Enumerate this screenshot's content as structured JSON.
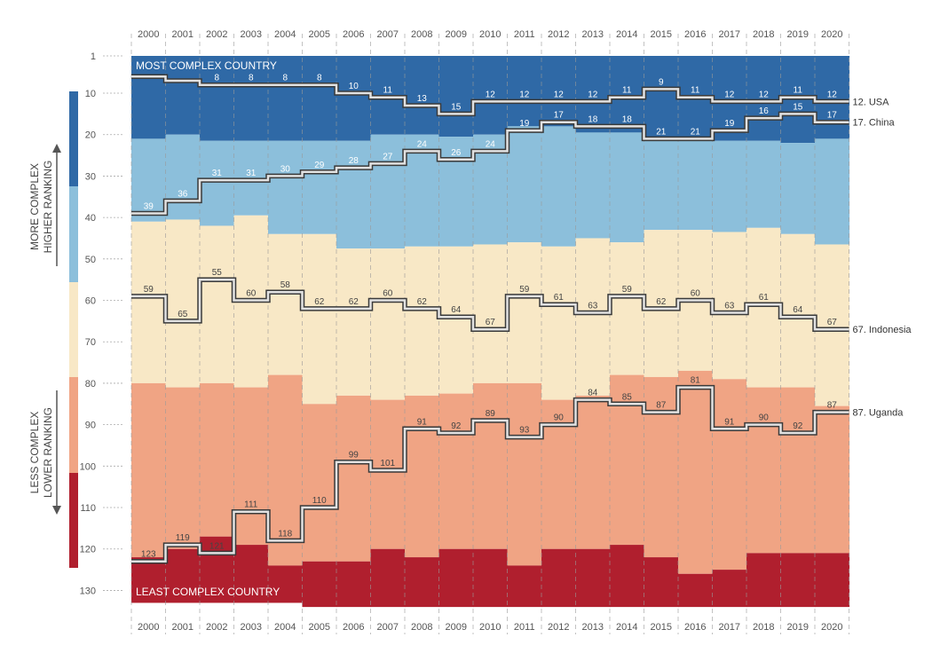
{
  "chart_data": {
    "type": "area",
    "title": "",
    "years": [
      "2000",
      "2001",
      "2002",
      "2003",
      "2004",
      "2005",
      "2006",
      "2007",
      "2008",
      "2009",
      "2010",
      "2011",
      "2012",
      "2013",
      "2014",
      "2015",
      "2016",
      "2017",
      "2018",
      "2019",
      "2020"
    ],
    "y_ticks": [
      1,
      10,
      20,
      30,
      40,
      50,
      60,
      70,
      80,
      90,
      100,
      110,
      120,
      130
    ],
    "y_range": [
      1,
      133
    ],
    "y_inverted": true,
    "banners": {
      "top": "MOST COMPLEX COUNTRY",
      "bottom": "LEAST COMPLEX COUNTRY"
    },
    "side_labels": {
      "top_line1": "MORE COMPLEX",
      "top_line2": "HIGHER RANKING",
      "bottom_line1": "LESS COMPLEX",
      "bottom_line2": "LOWER RANKING"
    },
    "band_colors": [
      "#2f69a6",
      "#8cbfdb",
      "#f8e8c6",
      "#f0a484",
      "#b01f2e"
    ],
    "band_bounds": {
      "b1": [
        21,
        20,
        21.5,
        21.5,
        21.5,
        21.5,
        21.5,
        20,
        20,
        20.5,
        20,
        18,
        18,
        19.5,
        19.5,
        21.5,
        21.5,
        21.5,
        21.5,
        22,
        21
      ],
      "b2": [
        41,
        40.5,
        42,
        39.5,
        44,
        44,
        47.5,
        47.5,
        47,
        47,
        46.5,
        46,
        47,
        45,
        46,
        43,
        43,
        43.5,
        42.5,
        44,
        46.5
      ],
      "b3": [
        80,
        81,
        80,
        81,
        78,
        85,
        83,
        84,
        83,
        82.5,
        80,
        80,
        84,
        83,
        78,
        78.5,
        77,
        79,
        81,
        81,
        85.5
      ],
      "b4": [
        122,
        120,
        117,
        119,
        124,
        123,
        123,
        120,
        122,
        120,
        120,
        124,
        120,
        120,
        119,
        122,
        126,
        125,
        121,
        121,
        121
      ],
      "b5": [
        133,
        133,
        133,
        133,
        133,
        134,
        134,
        134,
        134,
        134,
        134,
        134,
        134,
        134,
        134,
        134,
        134,
        134,
        134,
        134,
        134
      ]
    },
    "series": [
      {
        "name": "USA",
        "end_label": "12. USA",
        "label_color": "#ffffff",
        "values": [
          6,
          7,
          8,
          8,
          8,
          8,
          10,
          11,
          13,
          15,
          12,
          12,
          12,
          12,
          11,
          9,
          11,
          12,
          12,
          11,
          12
        ]
      },
      {
        "name": "China",
        "end_label": "17. China",
        "label_color": "#ffffff",
        "values": [
          39,
          36,
          31,
          31,
          30,
          29,
          28,
          27,
          24,
          26,
          24,
          19,
          17,
          18,
          18,
          21,
          21,
          19,
          16,
          15,
          17
        ]
      },
      {
        "name": "Indonesia",
        "end_label": "67. Indonesia",
        "label_color": "#444444",
        "values": [
          59,
          65,
          55,
          60,
          58,
          62,
          62,
          60,
          62,
          64,
          67,
          59,
          61,
          63,
          59,
          62,
          60,
          63,
          61,
          64,
          67
        ]
      },
      {
        "name": "Uganda",
        "end_label": "87. Uganda",
        "label_color": "#444444",
        "values": [
          123,
          119,
          121,
          111,
          118,
          110,
          99,
          101,
          91,
          92,
          89,
          93,
          90,
          84,
          85,
          87,
          81,
          91,
          90,
          92,
          87
        ]
      }
    ],
    "data_labels": {
      "USA": [
        "",
        "",
        "8",
        "8",
        "8",
        "8",
        "10",
        "11",
        "13",
        "15",
        "12",
        "12",
        "12",
        "12",
        "11",
        "9",
        "11",
        "12",
        "12",
        "11",
        "12"
      ],
      "China": [
        "39",
        "36",
        "31",
        "31",
        "30",
        "29",
        "28",
        "27",
        "24",
        "26",
        "24",
        "19",
        "17",
        "18",
        "18",
        "21",
        "21",
        "19",
        "16",
        "15",
        "17"
      ],
      "Indonesia": [
        "59",
        "65",
        "55",
        "60",
        "58",
        "62",
        "62",
        "60",
        "62",
        "64",
        "67",
        "59",
        "61",
        "63",
        "59",
        "62",
        "60",
        "63",
        "61",
        "64",
        "67"
      ],
      "Uganda": [
        "123",
        "119",
        "121",
        "111",
        "118",
        "110",
        "99",
        "101",
        "91",
        "92",
        "89",
        "93",
        "90",
        "84",
        "85",
        "87",
        "81",
        "91",
        "90",
        "92",
        "87"
      ]
    }
  }
}
